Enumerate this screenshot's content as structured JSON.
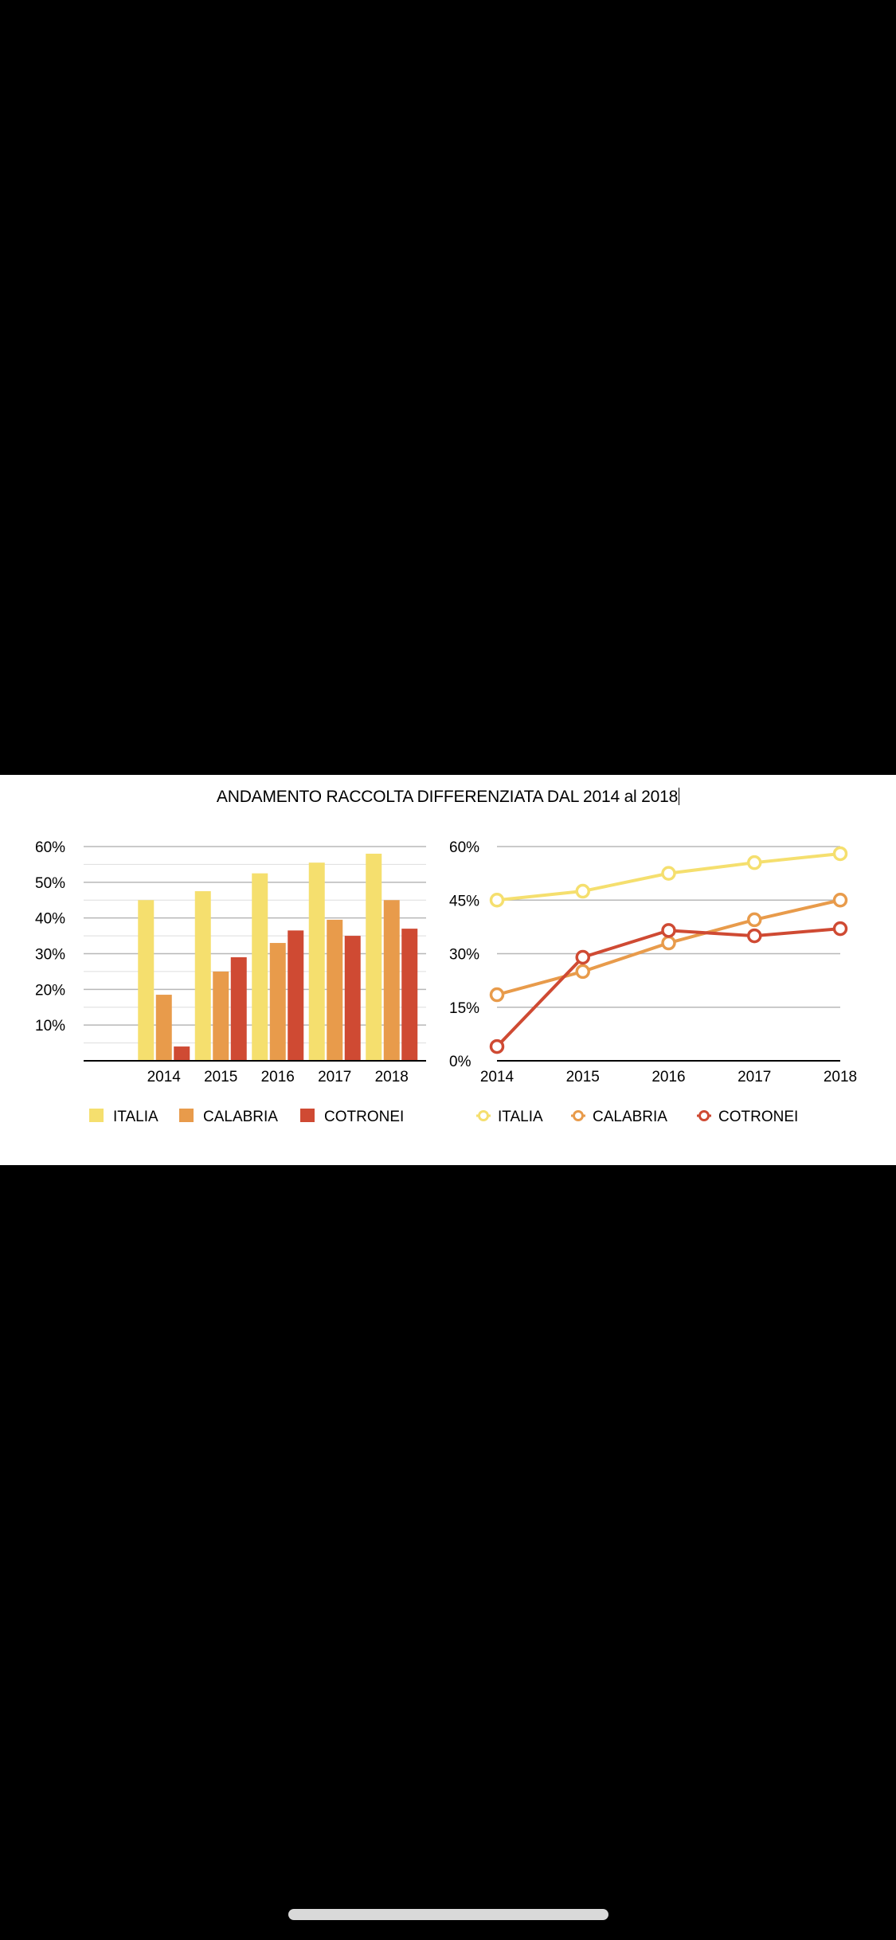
{
  "title": "ANDAMENTO RACCOLTA DIFFERENZIATA DAL 2014 al 2018",
  "colors": {
    "italia": "#f5df6e",
    "calabria": "#e89b4b",
    "cotronei": "#cf4a33",
    "grid": "#b8b8b8",
    "axis": "#000000"
  },
  "chart_data": [
    {
      "type": "bar",
      "categories": [
        "2014",
        "2015",
        "2016",
        "2017",
        "2018"
      ],
      "series": [
        {
          "name": "ITALIA",
          "color": "#f5df6e",
          "values": [
            45,
            47.5,
            52.5,
            55.5,
            58
          ]
        },
        {
          "name": "CALABRIA",
          "color": "#e89b4b",
          "values": [
            18.5,
            25,
            33,
            39.5,
            45
          ]
        },
        {
          "name": "COTRONEI",
          "color": "#cf4a33",
          "values": [
            4,
            29,
            36.5,
            35,
            37
          ]
        }
      ],
      "ylim": [
        0,
        60
      ],
      "yticks": [
        "10%",
        "20%",
        "30%",
        "40%",
        "50%",
        "60%"
      ],
      "grid": true,
      "legend": "bottom"
    },
    {
      "type": "line",
      "categories": [
        "2014",
        "2015",
        "2016",
        "2017",
        "2018"
      ],
      "series": [
        {
          "name": "ITALIA",
          "color": "#f5df6e",
          "values": [
            45,
            47.5,
            52.5,
            55.5,
            58
          ]
        },
        {
          "name": "CALABRIA",
          "color": "#e89b4b",
          "values": [
            18.5,
            25,
            33,
            39.5,
            45
          ]
        },
        {
          "name": "COTRONEI",
          "color": "#cf4a33",
          "values": [
            4,
            29,
            36.5,
            35,
            37
          ]
        }
      ],
      "ylim": [
        0,
        60
      ],
      "yticks": [
        "0%",
        "15%",
        "30%",
        "45%",
        "60%"
      ],
      "grid": true,
      "legend": "bottom"
    }
  ]
}
